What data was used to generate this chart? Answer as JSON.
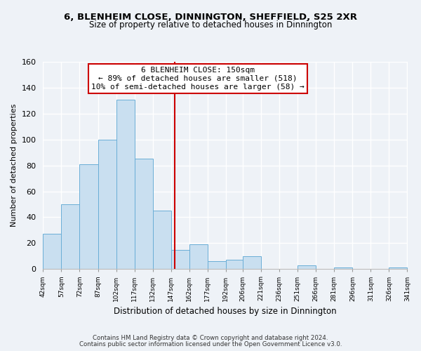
{
  "title": "6, BLENHEIM CLOSE, DINNINGTON, SHEFFIELD, S25 2XR",
  "subtitle": "Size of property relative to detached houses in Dinnington",
  "xlabel": "Distribution of detached houses by size in Dinnington",
  "ylabel": "Number of detached properties",
  "bar_edges": [
    42,
    57,
    72,
    87,
    102,
    117,
    132,
    147,
    162,
    177,
    192,
    206,
    221,
    236,
    251,
    266,
    281,
    296,
    311,
    326,
    341
  ],
  "bar_heights": [
    27,
    50,
    81,
    100,
    131,
    85,
    45,
    15,
    19,
    6,
    7,
    10,
    0,
    0,
    3,
    0,
    1,
    0,
    0,
    1
  ],
  "bar_color": "#c9dff0",
  "bar_edge_color": "#6aaed6",
  "vline_x": 150,
  "vline_color": "#cc0000",
  "annotation_title": "6 BLENHEIM CLOSE: 150sqm",
  "annotation_line1": "← 89% of detached houses are smaller (518)",
  "annotation_line2": "10% of semi-detached houses are larger (58) →",
  "annotation_box_color": "#ffffff",
  "annotation_box_edge": "#cc0000",
  "ylim": [
    0,
    160
  ],
  "tick_labels": [
    "42sqm",
    "57sqm",
    "72sqm",
    "87sqm",
    "102sqm",
    "117sqm",
    "132sqm",
    "147sqm",
    "162sqm",
    "177sqm",
    "192sqm",
    "206sqm",
    "221sqm",
    "236sqm",
    "251sqm",
    "266sqm",
    "281sqm",
    "296sqm",
    "311sqm",
    "326sqm",
    "341sqm"
  ],
  "footnote1": "Contains HM Land Registry data © Crown copyright and database right 2024.",
  "footnote2": "Contains public sector information licensed under the Open Government Licence v3.0.",
  "background_color": "#eef2f7",
  "grid_color": "#ffffff",
  "yticks": [
    0,
    20,
    40,
    60,
    80,
    100,
    120,
    140,
    160
  ]
}
